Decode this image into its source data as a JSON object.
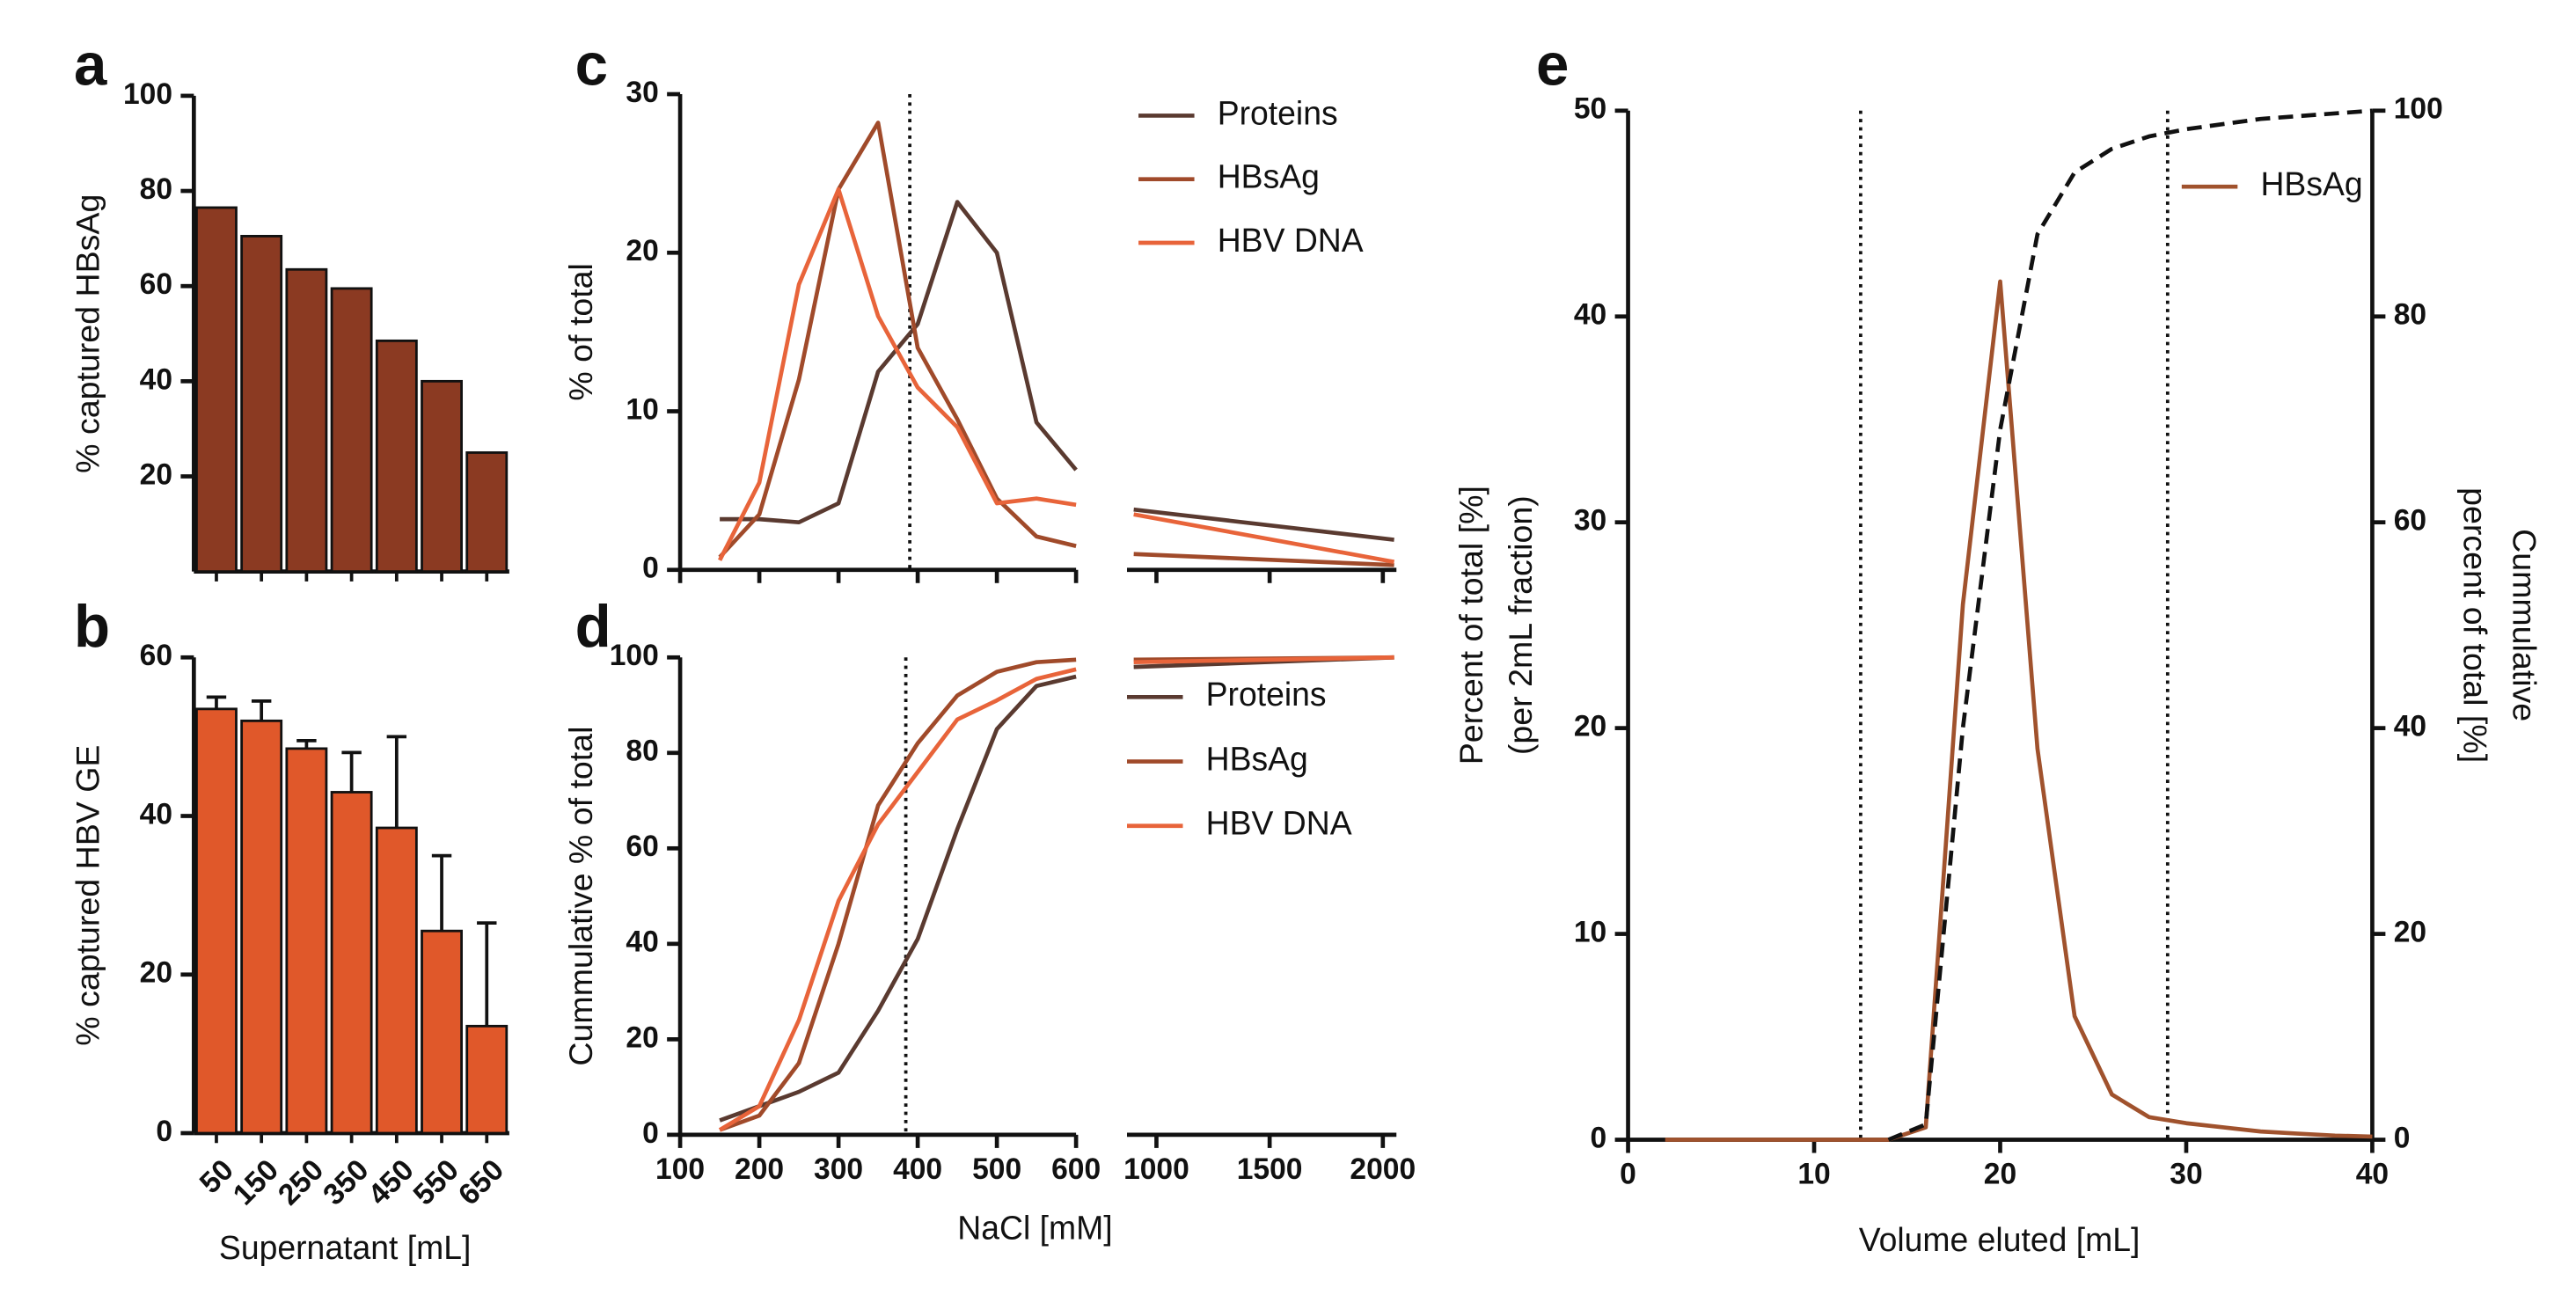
{
  "chart_data": [
    {
      "type": "bar",
      "panel": "a",
      "ylabel": "% captured HBsAg",
      "values": [
        76.5,
        70.5,
        63.5,
        59.5,
        48.5,
        40,
        25
      ],
      "color": "#8b3a22",
      "ylim": [
        0,
        100
      ],
      "yticks": [
        20,
        40,
        60,
        80,
        100
      ]
    },
    {
      "type": "bar",
      "panel": "b",
      "ylabel": "% captured HBV GE",
      "xlabel": "Supernatant [mL]",
      "categories": [
        "50",
        "150",
        "250",
        "350",
        "450",
        "550",
        "650"
      ],
      "values": [
        53.5,
        52,
        48.5,
        43,
        38.5,
        25.5,
        13.5
      ],
      "errors": [
        1.5,
        2.5,
        1,
        5,
        11.5,
        9.5,
        13
      ],
      "color": "#e0582a",
      "ylim": [
        0,
        60
      ],
      "yticks": [
        0,
        20,
        40,
        60
      ]
    },
    {
      "type": "line",
      "panel": "c",
      "ylabel": "% of total",
      "x": [
        150,
        200,
        250,
        300,
        350,
        400,
        450,
        500,
        550,
        600,
        900,
        2050
      ],
      "xlim_segments": [
        [
          100,
          600
        ],
        [
          870,
          2060
        ]
      ],
      "xticks": [
        100,
        200,
        300,
        400,
        500,
        600,
        1000,
        1500,
        2000
      ],
      "reference_x": [
        390
      ],
      "ylim": [
        0,
        30
      ],
      "yticks": [
        0,
        10,
        20,
        30
      ],
      "series": [
        {
          "name": "Proteins",
          "color": "#5a3a30",
          "values": [
            3.2,
            3.2,
            3,
            4.2,
            12.5,
            15.5,
            23.2,
            20,
            9.3,
            6.3,
            3.8,
            1.9
          ]
        },
        {
          "name": "HBsAg",
          "color": "#a04a2a",
          "values": [
            0.8,
            3.5,
            12,
            24,
            28.2,
            14,
            9.5,
            4.5,
            2.1,
            1.5,
            1,
            0.3
          ]
        },
        {
          "name": "HBV DNA",
          "color": "#e8643a",
          "values": [
            0.6,
            5.5,
            18,
            24,
            16,
            11.5,
            9,
            4.2,
            4.5,
            4.1,
            3.5,
            0.5
          ]
        }
      ]
    },
    {
      "type": "line",
      "panel": "d",
      "ylabel": "Cummulative % of total",
      "xlabel": "NaCl [mM]",
      "x": [
        150,
        200,
        250,
        300,
        350,
        400,
        450,
        500,
        550,
        600,
        900,
        2050
      ],
      "xlim_segments": [
        [
          100,
          600
        ],
        [
          870,
          2060
        ]
      ],
      "xticks": [
        100,
        200,
        300,
        400,
        500,
        600,
        1000,
        1500,
        2000
      ],
      "reference_x": [
        385
      ],
      "ylim": [
        0,
        100
      ],
      "yticks": [
        0,
        20,
        40,
        60,
        80,
        100
      ],
      "series": [
        {
          "name": "Proteins",
          "color": "#5a3a30",
          "values": [
            3,
            6,
            9,
            13,
            26,
            41,
            64,
            85,
            94,
            96,
            98,
            100
          ]
        },
        {
          "name": "HBsAg",
          "color": "#a04a2a",
          "values": [
            1,
            4,
            15,
            40,
            69,
            82,
            92,
            97,
            99,
            99.5,
            99.5,
            100
          ]
        },
        {
          "name": "HBV DNA",
          "color": "#e8643a",
          "values": [
            1,
            6,
            24,
            49,
            65,
            76,
            87,
            91,
            95.5,
            97.5,
            99,
            100
          ]
        }
      ]
    },
    {
      "type": "line",
      "panel": "e",
      "ylabel": [
        "Percent of total [%]",
        "(per 2mL fraction)"
      ],
      "y2label": [
        "Cummulative",
        "percent of total [%]"
      ],
      "xlabel": "Volume eluted [mL]",
      "xlim": [
        0,
        40
      ],
      "xticks": [
        0,
        10,
        20,
        30,
        40
      ],
      "reference_x": [
        12.5,
        29
      ],
      "ylim": [
        0,
        50
      ],
      "yticks": [
        0,
        10,
        20,
        30,
        40,
        50
      ],
      "y2lim": [
        0,
        100
      ],
      "y2ticks": [
        0,
        20,
        40,
        60,
        80,
        100
      ],
      "series": [
        {
          "name": "HBsAg",
          "color": "#a0522d",
          "x": [
            2,
            14,
            16,
            18,
            20,
            22,
            24,
            26,
            28,
            30,
            32,
            34,
            36,
            38,
            40
          ],
          "values": [
            0,
            0,
            0.6,
            26,
            41.7,
            19,
            6,
            2.2,
            1.1,
            0.8,
            0.6,
            0.4,
            0.3,
            0.2,
            0.15
          ]
        },
        {
          "color": "#111111",
          "style": "dashed",
          "axis": "y2",
          "x": [
            14,
            16,
            18,
            20,
            22,
            24,
            26,
            28,
            30,
            34,
            40
          ],
          "values": [
            0,
            1.5,
            40,
            69,
            88,
            94,
            96.3,
            97.5,
            98.2,
            99.2,
            100
          ]
        }
      ]
    }
  ]
}
